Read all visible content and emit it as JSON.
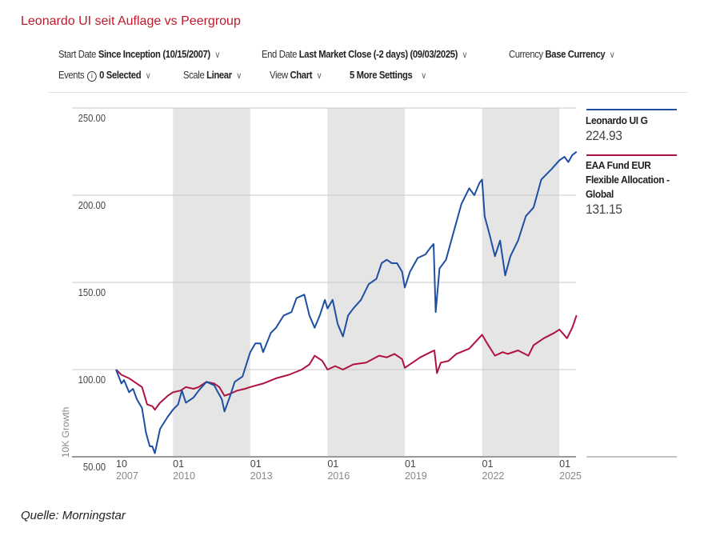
{
  "title": "Leonardo UI seit Auflage vs Peergroup",
  "controls": {
    "start_date": {
      "label": "Start Date",
      "value": "Since Inception (10/15/2007)"
    },
    "end_date": {
      "label": "End Date",
      "value": "Last Market Close (-2 days) (09/03/2025)"
    },
    "currency": {
      "label": "Currency",
      "value": "Base Currency"
    },
    "events": {
      "label": "Events",
      "value": "0 Selected",
      "icon": "info-icon"
    },
    "scale": {
      "label": "Scale",
      "value": "Linear"
    },
    "view": {
      "label": "View",
      "value": "Chart"
    },
    "more": {
      "value": "5 More Settings"
    }
  },
  "source": "Quelle: Morningstar",
  "colors": {
    "series1": "#1f4fa3",
    "series2": "#b0123f",
    "shade": "#e5e5e5",
    "title": "#c0182b"
  },
  "chart_data": {
    "type": "line",
    "ylabel": "10K Growth",
    "ylim": [
      50,
      250
    ],
    "yticks": [
      "250.00",
      "200.00",
      "150.00",
      "100.00",
      "50.00"
    ],
    "ytick_values": [
      250,
      200,
      150,
      100,
      50
    ],
    "xticks": [
      {
        "t": 2007.79,
        "m": "10",
        "y": "2007"
      },
      {
        "t": 2010.0,
        "m": "01",
        "y": "2010"
      },
      {
        "t": 2013.0,
        "m": "01",
        "y": "2013"
      },
      {
        "t": 2016.0,
        "m": "01",
        "y": "2016"
      },
      {
        "t": 2019.0,
        "m": "01",
        "y": "2019"
      },
      {
        "t": 2022.0,
        "m": "01",
        "y": "2022"
      },
      {
        "t": 2025.0,
        "m": "01",
        "y": "2025"
      }
    ],
    "xlim": [
      2007.79,
      2025.67
    ],
    "shaded_periods": [
      [
        2010.0,
        2013.0
      ],
      [
        2016.0,
        2019.0
      ],
      [
        2022.0,
        2025.0
      ]
    ],
    "grid": true,
    "legend": "right",
    "series": [
      {
        "name": "Leonardo UI G",
        "last": "224.93",
        "points": [
          [
            2007.79,
            100
          ],
          [
            2008.0,
            92
          ],
          [
            2008.1,
            94
          ],
          [
            2008.3,
            87
          ],
          [
            2008.45,
            89
          ],
          [
            2008.6,
            83
          ],
          [
            2008.8,
            78
          ],
          [
            2008.95,
            64
          ],
          [
            2009.1,
            56
          ],
          [
            2009.2,
            56
          ],
          [
            2009.3,
            52
          ],
          [
            2009.5,
            66
          ],
          [
            2009.8,
            73
          ],
          [
            2010.0,
            77
          ],
          [
            2010.2,
            80
          ],
          [
            2010.35,
            88
          ],
          [
            2010.5,
            81
          ],
          [
            2010.8,
            84
          ],
          [
            2011.0,
            88
          ],
          [
            2011.3,
            93
          ],
          [
            2011.6,
            91
          ],
          [
            2011.9,
            83
          ],
          [
            2012.0,
            76
          ],
          [
            2012.2,
            84
          ],
          [
            2012.4,
            93
          ],
          [
            2012.7,
            96
          ],
          [
            2013.0,
            110
          ],
          [
            2013.2,
            115
          ],
          [
            2013.4,
            115
          ],
          [
            2013.5,
            110
          ],
          [
            2013.8,
            121
          ],
          [
            2014.0,
            124
          ],
          [
            2014.3,
            131
          ],
          [
            2014.6,
            133
          ],
          [
            2014.8,
            141
          ],
          [
            2015.1,
            143
          ],
          [
            2015.3,
            131
          ],
          [
            2015.5,
            124
          ],
          [
            2015.7,
            131
          ],
          [
            2015.9,
            140
          ],
          [
            2016.0,
            135
          ],
          [
            2016.2,
            140
          ],
          [
            2016.4,
            126
          ],
          [
            2016.6,
            119
          ],
          [
            2016.8,
            131
          ],
          [
            2017.0,
            135
          ],
          [
            2017.3,
            140
          ],
          [
            2017.6,
            149
          ],
          [
            2017.9,
            152
          ],
          [
            2018.1,
            161
          ],
          [
            2018.3,
            163
          ],
          [
            2018.5,
            161
          ],
          [
            2018.7,
            161
          ],
          [
            2018.9,
            156
          ],
          [
            2019.0,
            147
          ],
          [
            2019.2,
            156
          ],
          [
            2019.5,
            164
          ],
          [
            2019.8,
            166
          ],
          [
            2020.0,
            170
          ],
          [
            2020.12,
            172
          ],
          [
            2020.2,
            133
          ],
          [
            2020.35,
            158
          ],
          [
            2020.6,
            163
          ],
          [
            2020.9,
            179
          ],
          [
            2021.2,
            195
          ],
          [
            2021.5,
            204
          ],
          [
            2021.7,
            200
          ],
          [
            2021.9,
            207
          ],
          [
            2022.0,
            209
          ],
          [
            2022.1,
            188
          ],
          [
            2022.3,
            177
          ],
          [
            2022.5,
            165
          ],
          [
            2022.7,
            174
          ],
          [
            2022.9,
            154
          ],
          [
            2023.1,
            165
          ],
          [
            2023.4,
            174
          ],
          [
            2023.7,
            188
          ],
          [
            2024.0,
            193
          ],
          [
            2024.3,
            209
          ],
          [
            2024.7,
            215
          ],
          [
            2025.0,
            220
          ],
          [
            2025.2,
            222
          ],
          [
            2025.35,
            219
          ],
          [
            2025.5,
            223
          ],
          [
            2025.67,
            224.93
          ]
        ]
      },
      {
        "name": "EAA Fund EUR Flexible Allocation - Global",
        "last": "131.15",
        "points": [
          [
            2007.79,
            100
          ],
          [
            2008.0,
            97
          ],
          [
            2008.3,
            95
          ],
          [
            2008.5,
            93
          ],
          [
            2008.8,
            90
          ],
          [
            2009.0,
            80
          ],
          [
            2009.2,
            79
          ],
          [
            2009.3,
            77
          ],
          [
            2009.5,
            81
          ],
          [
            2009.8,
            85
          ],
          [
            2010.0,
            87
          ],
          [
            2010.3,
            88
          ],
          [
            2010.5,
            90
          ],
          [
            2010.8,
            89
          ],
          [
            2011.0,
            90
          ],
          [
            2011.3,
            93
          ],
          [
            2011.6,
            92
          ],
          [
            2011.8,
            90
          ],
          [
            2012.0,
            85
          ],
          [
            2012.2,
            86
          ],
          [
            2012.5,
            88
          ],
          [
            2012.8,
            89
          ],
          [
            2013.0,
            90
          ],
          [
            2013.5,
            92
          ],
          [
            2014.0,
            95
          ],
          [
            2014.5,
            97
          ],
          [
            2015.0,
            100
          ],
          [
            2015.3,
            103
          ],
          [
            2015.5,
            108
          ],
          [
            2015.8,
            105
          ],
          [
            2016.0,
            100
          ],
          [
            2016.3,
            102
          ],
          [
            2016.6,
            100
          ],
          [
            2017.0,
            103
          ],
          [
            2017.5,
            104
          ],
          [
            2018.0,
            108
          ],
          [
            2018.3,
            107
          ],
          [
            2018.6,
            109
          ],
          [
            2018.9,
            106
          ],
          [
            2019.0,
            101
          ],
          [
            2019.3,
            104
          ],
          [
            2019.6,
            107
          ],
          [
            2020.0,
            110
          ],
          [
            2020.15,
            111
          ],
          [
            2020.25,
            98
          ],
          [
            2020.4,
            104
          ],
          [
            2020.7,
            105
          ],
          [
            2021.0,
            109
          ],
          [
            2021.5,
            112
          ],
          [
            2022.0,
            120
          ],
          [
            2022.2,
            115
          ],
          [
            2022.5,
            108
          ],
          [
            2022.8,
            110
          ],
          [
            2023.0,
            109
          ],
          [
            2023.4,
            111
          ],
          [
            2023.8,
            108
          ],
          [
            2024.0,
            114
          ],
          [
            2024.4,
            118
          ],
          [
            2024.8,
            121
          ],
          [
            2025.0,
            123
          ],
          [
            2025.3,
            118
          ],
          [
            2025.5,
            124
          ],
          [
            2025.67,
            131.15
          ]
        ]
      }
    ]
  }
}
